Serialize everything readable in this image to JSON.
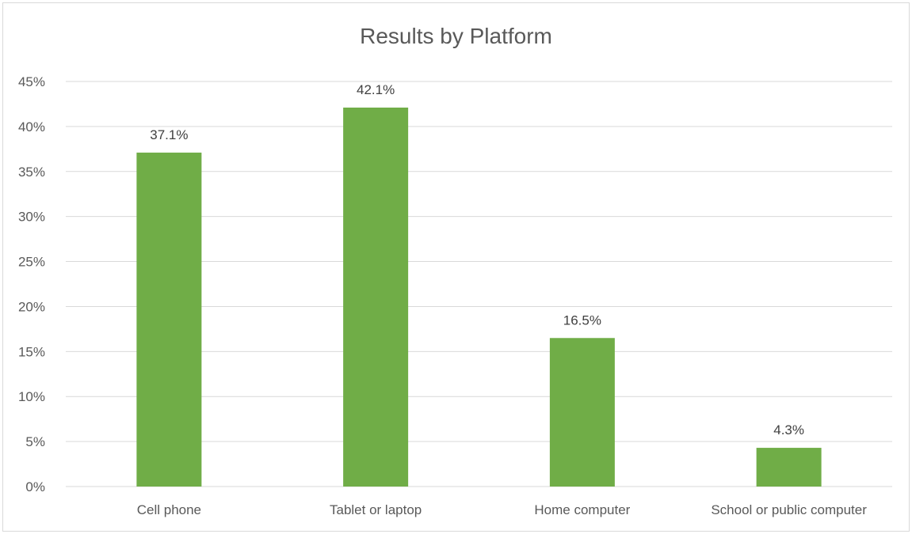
{
  "chart_data": {
    "type": "bar",
    "title": "Results by Platform",
    "categories": [
      "Cell phone",
      "Tablet or laptop",
      "Home computer",
      "School or public computer"
    ],
    "values": [
      37.1,
      42.1,
      16.5,
      4.3
    ],
    "data_labels": [
      "37.1%",
      "42.1%",
      "16.5%",
      "4.3%"
    ],
    "ylim": [
      0,
      45
    ],
    "yticks": [
      0,
      5,
      10,
      15,
      20,
      25,
      30,
      35,
      40,
      45
    ],
    "ytick_labels": [
      "0%",
      "5%",
      "10%",
      "15%",
      "20%",
      "25%",
      "30%",
      "35%",
      "40%",
      "45%"
    ],
    "xlabel": "",
    "ylabel": "",
    "grid": true,
    "legend": "none",
    "bar_color": "#70ad47",
    "grid_color": "#d9d9d9"
  }
}
